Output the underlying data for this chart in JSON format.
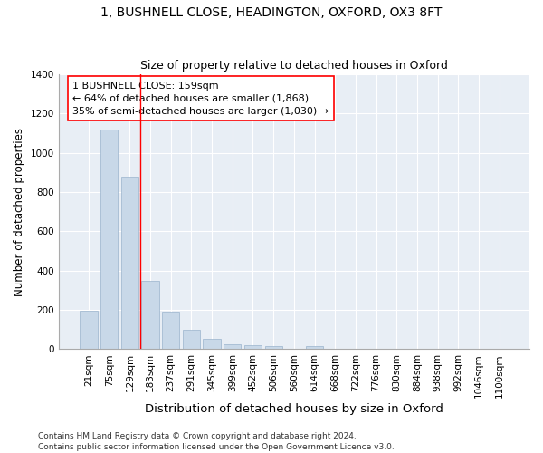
{
  "title1": "1, BUSHNELL CLOSE, HEADINGTON, OXFORD, OX3 8FT",
  "title2": "Size of property relative to detached houses in Oxford",
  "xlabel": "Distribution of detached houses by size in Oxford",
  "ylabel": "Number of detached properties",
  "bar_color": "#c8d8e8",
  "bar_edge_color": "#9ab4cc",
  "background_color": "#e8eef5",
  "grid_color": "#ffffff",
  "fig_facecolor": "#ffffff",
  "categories": [
    "21sqm",
    "75sqm",
    "129sqm",
    "183sqm",
    "237sqm",
    "291sqm",
    "345sqm",
    "399sqm",
    "452sqm",
    "506sqm",
    "560sqm",
    "614sqm",
    "668sqm",
    "722sqm",
    "776sqm",
    "830sqm",
    "884sqm",
    "938sqm",
    "992sqm",
    "1046sqm",
    "1100sqm"
  ],
  "values": [
    197,
    1120,
    880,
    350,
    193,
    100,
    55,
    25,
    20,
    15,
    0,
    15,
    0,
    0,
    0,
    0,
    0,
    0,
    0,
    0,
    0
  ],
  "ylim": [
    0,
    1400
  ],
  "yticks": [
    0,
    200,
    400,
    600,
    800,
    1000,
    1200,
    1400
  ],
  "property_line_x": 2.5,
  "annotation_text": "1 BUSHNELL CLOSE: 159sqm\n← 64% of detached houses are smaller (1,868)\n35% of semi-detached houses are larger (1,030) →",
  "footer": "Contains HM Land Registry data © Crown copyright and database right 2024.\nContains public sector information licensed under the Open Government Licence v3.0.",
  "title1_fontsize": 10,
  "title2_fontsize": 9,
  "xlabel_fontsize": 9.5,
  "ylabel_fontsize": 8.5,
  "tick_fontsize": 7.5,
  "annotation_fontsize": 8,
  "footer_fontsize": 6.5
}
